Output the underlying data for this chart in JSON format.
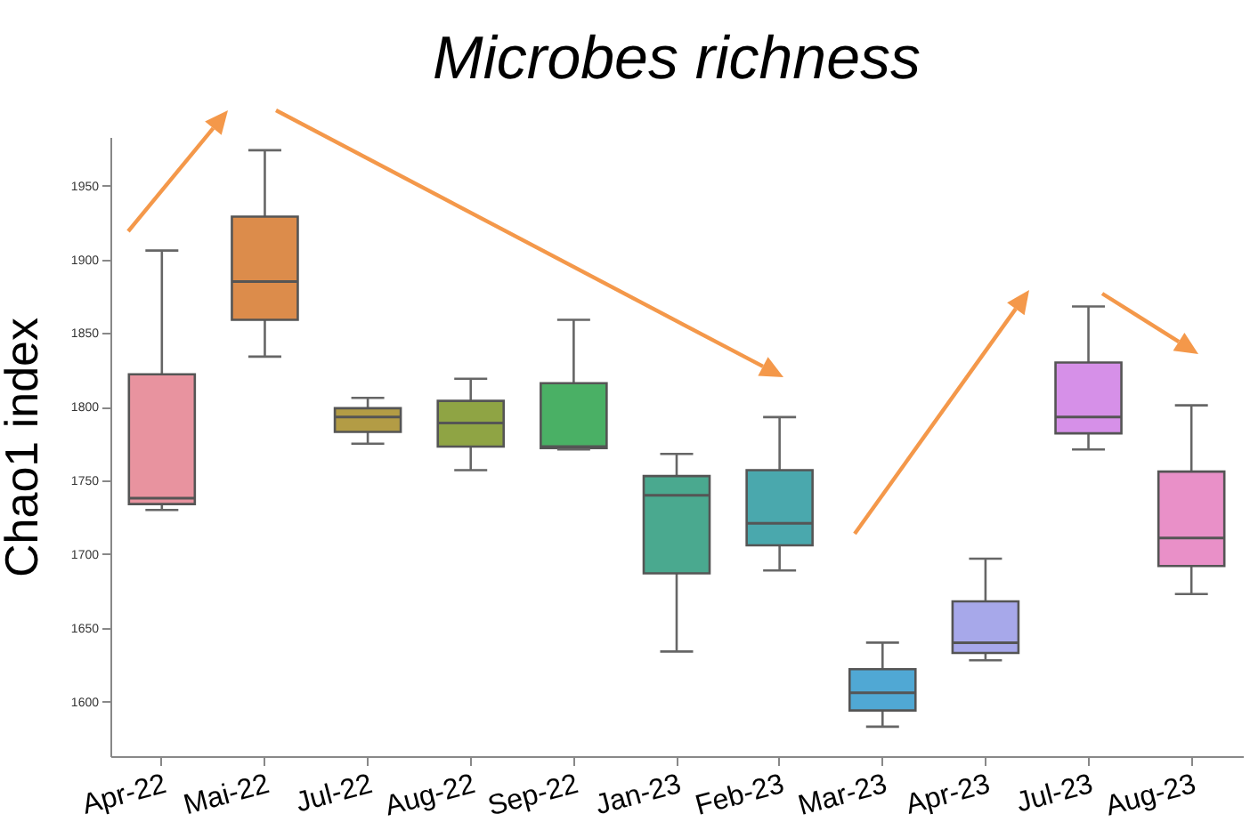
{
  "chart_data": {
    "type": "box",
    "title": "Microbes richness",
    "ylabel": "Chao1 index",
    "categories": [
      "Apr-22",
      "Mai-22",
      "Jul-22",
      "Aug-22",
      "Sep-22",
      "Jan-23",
      "Feb-23",
      "Mar-23",
      "Apr-23",
      "Jul-23",
      "Aug-23"
    ],
    "colors": [
      "#e8939f",
      "#dc8c4b",
      "#b39c45",
      "#8fa444",
      "#4ab065",
      "#4aa98f",
      "#4aa8ad",
      "#50a8d4",
      "#a7a8ea",
      "#d690e8",
      "#e990c8"
    ],
    "boxes": [
      {
        "low": 1730,
        "q1": 1734,
        "median": 1738,
        "q3": 1822,
        "high": 1906
      },
      {
        "low": 1834,
        "q1": 1859,
        "median": 1885,
        "q3": 1929,
        "high": 1974
      },
      {
        "low": 1775,
        "q1": 1783,
        "median": 1793,
        "q3": 1799,
        "high": 1806
      },
      {
        "low": 1757,
        "q1": 1773,
        "median": 1789,
        "q3": 1804,
        "high": 1819
      },
      {
        "low": 1771,
        "q1": 1772,
        "median": 1773,
        "q3": 1816,
        "high": 1859
      },
      {
        "low": 1634,
        "q1": 1687,
        "median": 1740,
        "q3": 1753,
        "high": 1768
      },
      {
        "low": 1689,
        "q1": 1706,
        "median": 1721,
        "q3": 1757,
        "high": 1793
      },
      {
        "low": 1583,
        "q1": 1594,
        "median": 1606,
        "q3": 1622,
        "high": 1640
      },
      {
        "low": 1628,
        "q1": 1633,
        "median": 1640,
        "q3": 1668,
        "high": 1697
      },
      {
        "low": 1771,
        "q1": 1782,
        "median": 1793,
        "q3": 1830,
        "high": 1868
      },
      {
        "low": 1673,
        "q1": 1692,
        "median": 1711,
        "q3": 1756,
        "high": 1801
      }
    ],
    "ylim": [
      1563,
      1983
    ],
    "yticks": [
      1600,
      1650,
      1700,
      1750,
      1800,
      1850,
      1900,
      1950
    ],
    "grid": false,
    "legend": false
  }
}
